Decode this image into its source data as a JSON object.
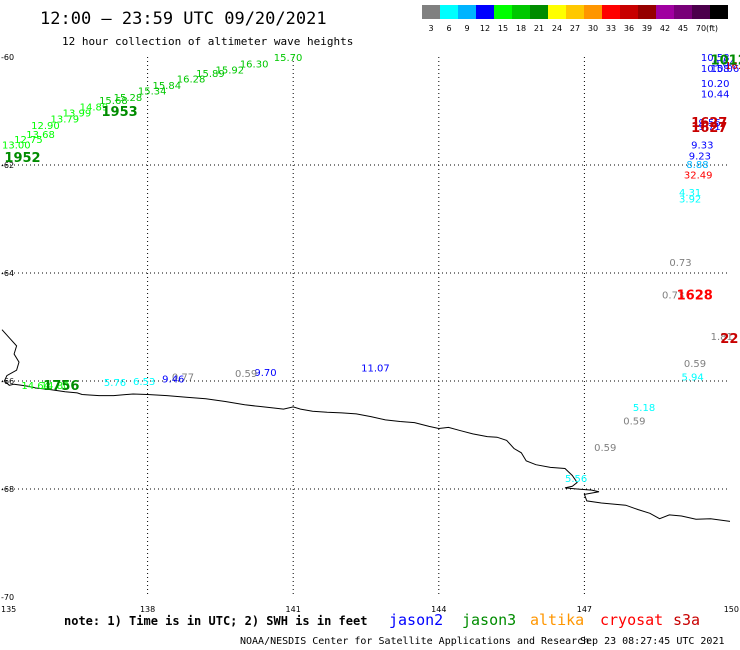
{
  "header": {
    "title": "12:00 – 23:59 UTC 09/20/2021",
    "subtitle": "12 hour collection of altimeter wave heights"
  },
  "legend": {
    "unit_label": "(ft)",
    "bins": [
      {
        "color": "#808080",
        "label": "3"
      },
      {
        "color": "#00ffff",
        "label": "6"
      },
      {
        "color": "#00b4ff",
        "label": "9"
      },
      {
        "color": "#0000ff",
        "label": "12"
      },
      {
        "color": "#00ff00",
        "label": "15"
      },
      {
        "color": "#00c800",
        "label": "18"
      },
      {
        "color": "#008c00",
        "label": "21"
      },
      {
        "color": "#ffff00",
        "label": "24"
      },
      {
        "color": "#ffc800",
        "label": "27"
      },
      {
        "color": "#ff9600",
        "label": "30"
      },
      {
        "color": "#ff0000",
        "label": "33"
      },
      {
        "color": "#c80000",
        "label": "36"
      },
      {
        "color": "#960000",
        "label": "39"
      },
      {
        "color": "#a000a0",
        "label": "42"
      },
      {
        "color": "#780078",
        "label": "45"
      },
      {
        "color": "#4b004b",
        "label": "70"
      },
      {
        "color": "#000000",
        "label": ""
      }
    ]
  },
  "map": {
    "lon_range": [
      135,
      150
    ],
    "lat_range": [
      -70,
      -60
    ],
    "lon_ticks": [
      {
        "value": 135,
        "label": "135"
      },
      {
        "value": 138,
        "label": "138"
      },
      {
        "value": 141,
        "label": "141"
      },
      {
        "value": 144,
        "label": "144"
      },
      {
        "value": 147,
        "label": "147"
      },
      {
        "value": 150,
        "label": "150"
      }
    ],
    "lat_ticks": [
      {
        "value": -60,
        "label": "-60"
      },
      {
        "value": -62,
        "label": "-62"
      },
      {
        "value": -64,
        "label": "-64"
      },
      {
        "value": -66,
        "label": "-66"
      },
      {
        "value": -68,
        "label": "-68"
      },
      {
        "value": -70,
        "label": "-70"
      }
    ],
    "grid_lines": "dotted",
    "coastline": [
      [
        135.0,
        -65.05
      ],
      [
        135.15,
        -65.2
      ],
      [
        135.3,
        -65.35
      ],
      [
        135.25,
        -65.5
      ],
      [
        135.35,
        -65.65
      ],
      [
        135.3,
        -65.8
      ],
      [
        135.1,
        -65.9
      ],
      [
        135.05,
        -66.0
      ],
      [
        135.15,
        -66.08
      ],
      [
        135.25,
        -66.06
      ],
      [
        135.4,
        -66.08
      ],
      [
        135.55,
        -66.1
      ],
      [
        135.7,
        -66.13
      ],
      [
        136.0,
        -66.16
      ],
      [
        136.3,
        -66.2
      ],
      [
        136.55,
        -66.22
      ],
      [
        136.65,
        -66.25
      ],
      [
        136.8,
        -66.26
      ],
      [
        137.0,
        -66.27
      ],
      [
        137.3,
        -66.27
      ],
      [
        137.7,
        -66.24
      ],
      [
        138.0,
        -66.25
      ],
      [
        138.4,
        -66.27
      ],
      [
        138.8,
        -66.3
      ],
      [
        139.2,
        -66.33
      ],
      [
        139.6,
        -66.38
      ],
      [
        140.0,
        -66.44
      ],
      [
        140.3,
        -66.47
      ],
      [
        140.6,
        -66.5
      ],
      [
        140.8,
        -66.52
      ],
      [
        141.0,
        -66.48
      ],
      [
        141.15,
        -66.52
      ],
      [
        141.4,
        -66.56
      ],
      [
        141.7,
        -66.58
      ],
      [
        142.0,
        -66.59
      ],
      [
        142.3,
        -66.61
      ],
      [
        142.6,
        -66.66
      ],
      [
        142.9,
        -66.72
      ],
      [
        143.2,
        -66.75
      ],
      [
        143.5,
        -66.77
      ],
      [
        143.8,
        -66.84
      ],
      [
        144.0,
        -66.88
      ],
      [
        144.2,
        -66.86
      ],
      [
        144.45,
        -66.92
      ],
      [
        144.7,
        -66.98
      ],
      [
        145.0,
        -67.03
      ],
      [
        145.2,
        -67.04
      ],
      [
        145.4,
        -67.1
      ],
      [
        145.55,
        -67.25
      ],
      [
        145.7,
        -67.33
      ],
      [
        145.8,
        -67.48
      ],
      [
        146.0,
        -67.55
      ],
      [
        146.3,
        -67.6
      ],
      [
        146.6,
        -67.62
      ],
      [
        146.75,
        -67.75
      ],
      [
        146.85,
        -67.88
      ],
      [
        146.75,
        -67.95
      ],
      [
        146.6,
        -67.98
      ],
      [
        146.85,
        -68.0
      ],
      [
        147.15,
        -68.02
      ],
      [
        147.3,
        -68.05
      ],
      [
        147.0,
        -68.1
      ],
      [
        147.05,
        -68.22
      ],
      [
        147.35,
        -68.26
      ],
      [
        147.6,
        -68.28
      ],
      [
        147.85,
        -68.3
      ],
      [
        148.1,
        -68.38
      ],
      [
        148.35,
        -68.45
      ],
      [
        148.55,
        -68.55
      ],
      [
        148.75,
        -68.48
      ],
      [
        149.0,
        -68.5
      ],
      [
        149.3,
        -68.56
      ],
      [
        149.6,
        -68.55
      ],
      [
        150.0,
        -68.6
      ]
    ]
  },
  "observations": [
    {
      "t": "15.70",
      "lon": 140.6,
      "lat": -60.0,
      "c": "#00c800"
    },
    {
      "t": "16.30",
      "lon": 139.9,
      "lat": -60.12,
      "c": "#00c800"
    },
    {
      "t": "15.92",
      "lon": 139.4,
      "lat": -60.23,
      "c": "#00c800"
    },
    {
      "t": "15.89",
      "lon": 139.0,
      "lat": -60.3,
      "c": "#00c800"
    },
    {
      "t": "16.28",
      "lon": 138.6,
      "lat": -60.4,
      "c": "#00c800"
    },
    {
      "t": "15.84",
      "lon": 138.1,
      "lat": -60.52,
      "c": "#00c800"
    },
    {
      "t": "15.34",
      "lon": 137.8,
      "lat": -60.62,
      "c": "#00c800"
    },
    {
      "t": "15.28",
      "lon": 137.3,
      "lat": -60.74,
      "c": "#00c800"
    },
    {
      "t": "15.68",
      "lon": 137.0,
      "lat": -60.8,
      "c": "#00c800"
    },
    {
      "t": "14.89",
      "lon": 136.6,
      "lat": -60.92,
      "c": "#00ff00"
    },
    {
      "t": "13.99",
      "lon": 136.25,
      "lat": -61.03,
      "c": "#00ff00"
    },
    {
      "t": "13.79",
      "lon": 136.0,
      "lat": -61.14,
      "c": "#00ff00"
    },
    {
      "t": "12.90",
      "lon": 135.6,
      "lat": -61.26,
      "c": "#00ff00"
    },
    {
      "t": "13.68",
      "lon": 135.5,
      "lat": -61.43,
      "c": "#00ff00"
    },
    {
      "t": "12.75",
      "lon": 135.25,
      "lat": -61.52,
      "c": "#00ff00"
    },
    {
      "t": "13.00",
      "lon": 135.0,
      "lat": -61.62,
      "c": "#00ff00"
    },
    {
      "t": "10.58",
      "lon": 149.4,
      "lat": -60.0,
      "c": "#0000ff"
    },
    {
      "t": "10.58",
      "lon": 149.4,
      "lat": -60.2,
      "c": "#0000ff"
    },
    {
      "t": "10.06",
      "lon": 149.6,
      "lat": -60.2,
      "c": "#0000ff"
    },
    {
      "t": "9.84",
      "lon": 149.65,
      "lat": -60.1,
      "c": "#0000ff"
    },
    {
      "t": "10.20",
      "lon": 149.4,
      "lat": -60.48,
      "c": "#0000ff"
    },
    {
      "t": "10.44",
      "lon": 149.4,
      "lat": -60.68,
      "c": "#0000ff"
    },
    {
      "t": "9.56",
      "lon": 149.35,
      "lat": -61.2,
      "c": "#0000ff"
    },
    {
      "t": "9.71",
      "lon": 149.35,
      "lat": -61.28,
      "c": "#0000ff"
    },
    {
      "t": "9.33",
      "lon": 149.2,
      "lat": -61.62,
      "c": "#0000ff"
    },
    {
      "t": "9.23",
      "lon": 149.15,
      "lat": -61.82,
      "c": "#0000ff"
    },
    {
      "t": "8.88",
      "lon": 149.1,
      "lat": -61.98,
      "c": "#00b4ff"
    },
    {
      "t": "32.49",
      "lon": 149.05,
      "lat": -62.18,
      "c": "#ff0000"
    },
    {
      "t": "4.31",
      "lon": 148.95,
      "lat": -62.5,
      "c": "#00ffff"
    },
    {
      "t": "3.92",
      "lon": 148.95,
      "lat": -62.62,
      "c": "#00ffff"
    },
    {
      "t": "16.2",
      "lon": 149.9,
      "lat": -60.15,
      "c": "#c80000"
    },
    {
      "t": "0.73",
      "lon": 148.75,
      "lat": -63.8,
      "c": "#808080"
    },
    {
      "t": "0.73",
      "lon": 148.6,
      "lat": -64.4,
      "c": "#808080"
    },
    {
      "t": "1.81",
      "lon": 149.6,
      "lat": -65.17,
      "c": "#808080"
    },
    {
      "t": "0.59",
      "lon": 149.05,
      "lat": -65.67,
      "c": "#808080"
    },
    {
      "t": "5.94",
      "lon": 149.0,
      "lat": -65.92,
      "c": "#00ffff"
    },
    {
      "t": "5.18",
      "lon": 148.0,
      "lat": -66.48,
      "c": "#00ffff"
    },
    {
      "t": "0.59",
      "lon": 147.8,
      "lat": -66.73,
      "c": "#808080"
    },
    {
      "t": "0.59",
      "lon": 147.2,
      "lat": -67.22,
      "c": "#808080"
    },
    {
      "t": "5.56",
      "lon": 146.6,
      "lat": -67.8,
      "c": "#00ffff"
    },
    {
      "t": "11.07",
      "lon": 142.4,
      "lat": -65.75,
      "c": "#0000ff"
    },
    {
      "t": "9.70",
      "lon": 140.2,
      "lat": -65.83,
      "c": "#0000ff"
    },
    {
      "t": "0.59",
      "lon": 139.8,
      "lat": -65.85,
      "c": "#808080"
    },
    {
      "t": "0.77",
      "lon": 138.5,
      "lat": -65.92,
      "c": "#808080"
    },
    {
      "t": "9.46",
      "lon": 138.3,
      "lat": -65.95,
      "c": "#0000ff"
    },
    {
      "t": "6.53",
      "lon": 137.7,
      "lat": -66.0,
      "c": "#00ffff"
    },
    {
      "t": "5.76",
      "lon": 137.1,
      "lat": -66.02,
      "c": "#00ffff"
    },
    {
      "t": "14.64",
      "lon": 135.4,
      "lat": -66.07,
      "c": "#00ff00"
    },
    {
      "t": "14.80",
      "lon": 135.8,
      "lat": -66.07,
      "c": "#00ff00"
    }
  ],
  "pass_labels": [
    {
      "t": "1953",
      "lon": 137.05,
      "lat": -61.0,
      "c": "#008c00"
    },
    {
      "t": "1952",
      "lon": 135.05,
      "lat": -61.85,
      "c": "#008c00"
    },
    {
      "t": "1627",
      "lon": 149.2,
      "lat": -61.2,
      "c": "#c80000"
    },
    {
      "t": "1627",
      "lon": 149.2,
      "lat": -61.3,
      "c": "#c80000"
    },
    {
      "t": "1628",
      "lon": 148.9,
      "lat": -64.4,
      "c": "#ff0000"
    },
    {
      "t": "22",
      "lon": 149.8,
      "lat": -65.2,
      "c": "#c80000"
    },
    {
      "t": "1756",
      "lon": 135.85,
      "lat": -66.07,
      "c": "#008c00"
    },
    {
      "t": "1012",
      "lon": 149.6,
      "lat": -60.05,
      "c": "#008c00"
    }
  ],
  "footer": {
    "note": "note: 1) Time is in UTC; 2) SWH is in feet",
    "satellites": [
      {
        "name": "jason2",
        "color": "#0000ff"
      },
      {
        "name": "jason3",
        "color": "#008c00"
      },
      {
        "name": "altika",
        "color": "#ff9600"
      },
      {
        "name": "cryosat",
        "color": "#ff0000"
      },
      {
        "name": "s3a",
        "color": "#c80000"
      }
    ],
    "credit": "NOAA/NESDIS Center for Satellite Applications and Research",
    "timestamp": "Sep 23 08:27:45 UTC 2021"
  }
}
